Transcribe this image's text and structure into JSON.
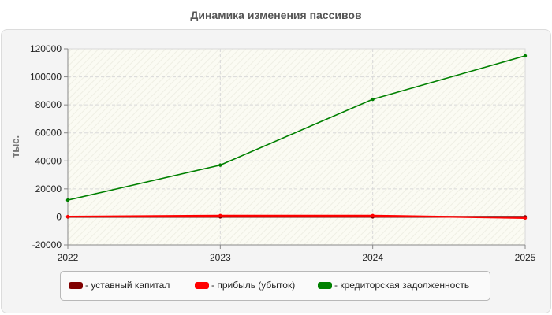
{
  "chart_data": {
    "type": "line",
    "title": "Динамика изменения пассивов",
    "ylabel": "тыс.",
    "xlabel": "",
    "x": [
      "2022",
      "2023",
      "2024",
      "2025"
    ],
    "ylim": [
      -20000,
      120000
    ],
    "yticks": [
      "-20000",
      "0",
      "20000",
      "40000",
      "60000",
      "80000",
      "100000",
      "120000"
    ],
    "grid": true,
    "legend_position": "bottom",
    "series": [
      {
        "name": "- уставный капитал",
        "color": "#800000",
        "values": [
          10,
          10,
          10,
          10
        ]
      },
      {
        "name": "- прибыль (убыток)",
        "color": "#ff0000",
        "values": [
          200,
          900,
          900,
          -800
        ]
      },
      {
        "name": "- кредиторская задолженность",
        "color": "#008000",
        "values": [
          12000,
          37000,
          84000,
          115000
        ]
      }
    ]
  }
}
